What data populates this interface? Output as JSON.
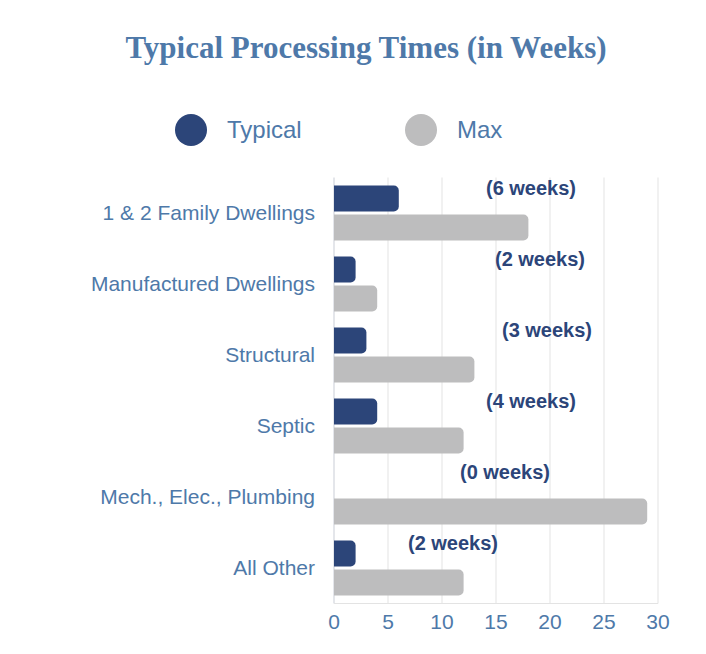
{
  "chart_data": {
    "type": "bar",
    "title": "Typical Processing Times (in Weeks)",
    "orientation": "horizontal",
    "categories": [
      "1 & 2 Family Dwellings",
      "Manufactured Dwellings",
      "Structural",
      "Septic",
      "Mech., Elec., Plumbing",
      "All Other"
    ],
    "series": [
      {
        "name": "Typical",
        "color": "#2c4579",
        "values": [
          6,
          2,
          3,
          4,
          0,
          2
        ],
        "data_labels": true,
        "value_labels": [
          "(6 weeks)",
          "(2 weeks)",
          "(3 weeks)",
          "(4 weeks)",
          "(0 weeks)",
          "(2 weeks)"
        ]
      },
      {
        "name": "Max",
        "color": "#bdbdbe",
        "values": [
          18,
          4,
          13,
          12,
          29,
          12
        ]
      }
    ],
    "xlim": [
      0,
      30
    ],
    "xticks": [
      0,
      5,
      10,
      15,
      20,
      25,
      30
    ],
    "grid": true,
    "legend": "top"
  }
}
